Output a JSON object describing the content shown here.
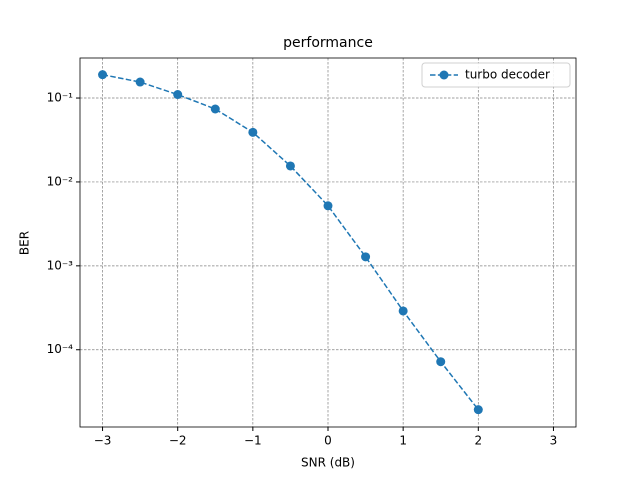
{
  "chart_data": {
    "type": "line",
    "title": "performance",
    "x_label": "SNR (dB)",
    "y_label": "BER",
    "x": [
      -3,
      -2.5,
      -2,
      -1.5,
      -1,
      -0.5,
      0,
      0.5,
      1,
      1.5,
      2
    ],
    "series": [
      {
        "name": "turbo decoder",
        "color": "#1f77b4",
        "values": [
          0.19,
          0.155,
          0.11,
          0.074,
          0.039,
          0.0155,
          0.0052,
          0.00128,
          0.00029,
          7.2e-05,
          1.93e-05
        ]
      }
    ],
    "xlim": [
      -3.3,
      3.3
    ],
    "ylim": [
      1.2e-05,
      0.3
    ],
    "xticks": [
      {
        "value": -3,
        "label": "−3"
      },
      {
        "value": -2,
        "label": "−2"
      },
      {
        "value": -1,
        "label": "−1"
      },
      0,
      1,
      2,
      3
    ],
    "yticks": [
      {
        "value": 0.0001,
        "label": "10⁻⁴"
      },
      {
        "value": 0.001,
        "label": "10⁻³"
      },
      {
        "value": 0.01,
        "label": "10⁻²"
      },
      {
        "value": 0.1,
        "label": "10⁻¹"
      }
    ],
    "y_scale": "log",
    "grid": true,
    "legend": "upper right"
  }
}
